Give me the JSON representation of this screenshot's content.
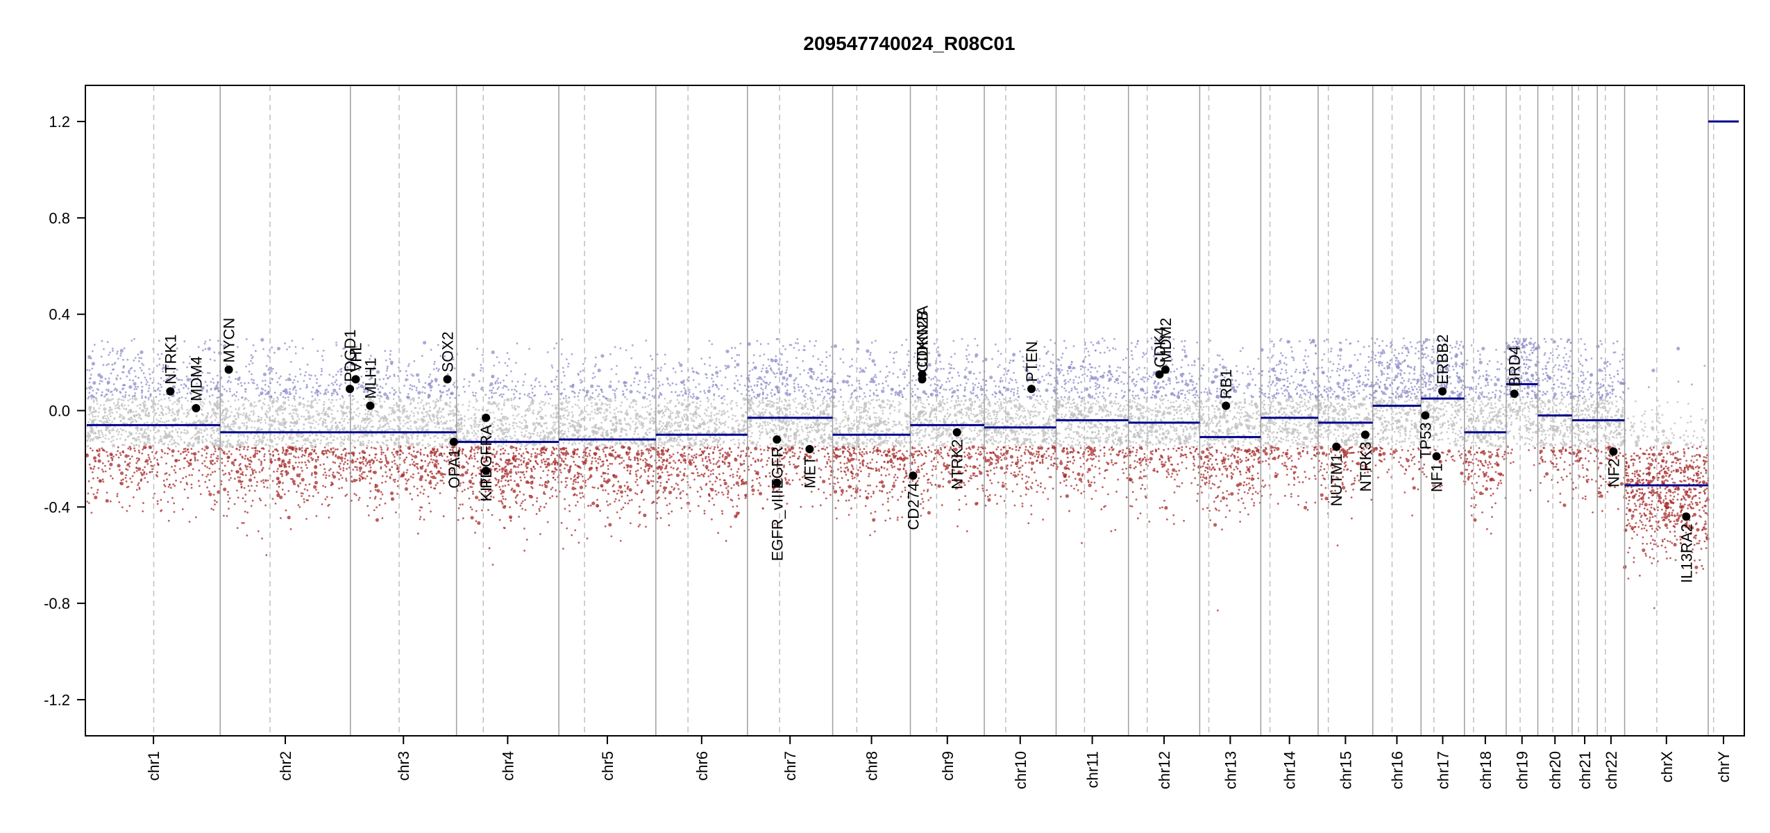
{
  "chart_data": {
    "type": "scatter",
    "title": "209547740024_R08C01",
    "xlabel": "",
    "ylabel": "",
    "ylim": [
      -1.35,
      1.35
    ],
    "yticks": [
      -1.2,
      -0.8,
      -0.4,
      0.0,
      0.4,
      0.8,
      1.2
    ],
    "ytick_labels": [
      "-1.2",
      "-0.8",
      "-0.4",
      "0.0",
      "0.4",
      "0.8",
      "1.2"
    ],
    "grid": false,
    "colors": {
      "segment": "#00008b",
      "gain_points": "#8c8cc8",
      "loss_points": "#a52a2a",
      "neutral_points": "#bdbdbd",
      "boundary": "#9e9e9e",
      "centromere": "#c0c0c0"
    },
    "chromosomes": [
      {
        "name": "chr1",
        "length": 249,
        "centromere": 125
      },
      {
        "name": "chr2",
        "length": 243,
        "centromere": 93
      },
      {
        "name": "chr3",
        "length": 198,
        "centromere": 91
      },
      {
        "name": "chr4",
        "length": 191,
        "centromere": 50
      },
      {
        "name": "chr5",
        "length": 181,
        "centromere": 48
      },
      {
        "name": "chr6",
        "length": 171,
        "centromere": 60
      },
      {
        "name": "chr7",
        "length": 159,
        "centromere": 60
      },
      {
        "name": "chr8",
        "length": 145,
        "centromere": 45
      },
      {
        "name": "chr9",
        "length": 138,
        "centromere": 49
      },
      {
        "name": "chr10",
        "length": 134,
        "centromere": 40
      },
      {
        "name": "chr11",
        "length": 135,
        "centromere": 53
      },
      {
        "name": "chr12",
        "length": 133,
        "centromere": 35
      },
      {
        "name": "chr13",
        "length": 114,
        "centromere": 17
      },
      {
        "name": "chr14",
        "length": 107,
        "centromere": 17
      },
      {
        "name": "chr15",
        "length": 102,
        "centromere": 19
      },
      {
        "name": "chr16",
        "length": 90,
        "centromere": 36
      },
      {
        "name": "chr17",
        "length": 81,
        "centromere": 24
      },
      {
        "name": "chr18",
        "length": 78,
        "centromere": 17
      },
      {
        "name": "chr19",
        "length": 59,
        "centromere": 26
      },
      {
        "name": "chr20",
        "length": 64,
        "centromere": 28
      },
      {
        "name": "chr21",
        "length": 47,
        "centromere": 12
      },
      {
        "name": "chr22",
        "length": 51,
        "centromere": 15
      },
      {
        "name": "chrX",
        "length": 156,
        "centromere": 60
      },
      {
        "name": "chrY",
        "length": 57,
        "centromere": 10
      }
    ],
    "segments": [
      {
        "chrom": "chr1",
        "start": 0,
        "end": 249,
        "value": -0.06
      },
      {
        "chrom": "chr2",
        "start": 0,
        "end": 243,
        "value": -0.09
      },
      {
        "chrom": "chr3",
        "start": 0,
        "end": 198,
        "value": -0.09
      },
      {
        "chrom": "chr4",
        "start": 0,
        "end": 191,
        "value": -0.13
      },
      {
        "chrom": "chr5",
        "start": 0,
        "end": 181,
        "value": -0.12
      },
      {
        "chrom": "chr6",
        "start": 0,
        "end": 171,
        "value": -0.1
      },
      {
        "chrom": "chr7",
        "start": 0,
        "end": 159,
        "value": -0.03
      },
      {
        "chrom": "chr8",
        "start": 0,
        "end": 145,
        "value": -0.1
      },
      {
        "chrom": "chr9",
        "start": 0,
        "end": 138,
        "value": -0.06
      },
      {
        "chrom": "chr10",
        "start": 0,
        "end": 134,
        "value": -0.07
      },
      {
        "chrom": "chr11",
        "start": 0,
        "end": 135,
        "value": -0.04
      },
      {
        "chrom": "chr12",
        "start": 0,
        "end": 133,
        "value": -0.05
      },
      {
        "chrom": "chr13",
        "start": 0,
        "end": 114,
        "value": -0.11
      },
      {
        "chrom": "chr14",
        "start": 0,
        "end": 107,
        "value": -0.03
      },
      {
        "chrom": "chr15",
        "start": 0,
        "end": 102,
        "value": -0.05
      },
      {
        "chrom": "chr16",
        "start": 0,
        "end": 90,
        "value": 0.02
      },
      {
        "chrom": "chr17",
        "start": 0,
        "end": 81,
        "value": 0.05
      },
      {
        "chrom": "chr18",
        "start": 0,
        "end": 78,
        "value": -0.09
      },
      {
        "chrom": "chr19",
        "start": 0,
        "end": 59,
        "value": 0.11
      },
      {
        "chrom": "chr20",
        "start": 0,
        "end": 64,
        "value": -0.02
      },
      {
        "chrom": "chr21",
        "start": 0,
        "end": 47,
        "value": -0.04
      },
      {
        "chrom": "chr22",
        "start": 0,
        "end": 51,
        "value": -0.04
      },
      {
        "chrom": "chrX",
        "start": 0,
        "end": 156,
        "value": -0.31
      },
      {
        "chrom": "chrY",
        "start": 0,
        "end": 57,
        "value": 1.2
      }
    ],
    "genes": [
      {
        "label": "NTRK1",
        "chrom": "chr1",
        "pos": 156,
        "value": 0.08
      },
      {
        "label": "MDM4",
        "chrom": "chr1",
        "pos": 204,
        "value": 0.01
      },
      {
        "label": "MYCN",
        "chrom": "chr2",
        "pos": 16,
        "value": 0.17
      },
      {
        "label": "PDGD1",
        "chrom": "chr2",
        "pos": 242,
        "value": 0.09
      },
      {
        "label": "VHL",
        "chrom": "chr3",
        "pos": 10,
        "value": 0.13
      },
      {
        "label": "MLH1",
        "chrom": "chr3",
        "pos": 37,
        "value": 0.02
      },
      {
        "label": "SOX2",
        "chrom": "chr3",
        "pos": 181,
        "value": 0.13
      },
      {
        "label": "OPA1",
        "chrom": "chr3",
        "pos": 193,
        "value": -0.13
      },
      {
        "label": "KIT",
        "chrom": "chr4",
        "pos": 55,
        "value": -0.25
      },
      {
        "label": "PDGFRA",
        "chrom": "chr4",
        "pos": 55,
        "value": -0.03
      },
      {
        "label": "EGFR_vIII",
        "chrom": "chr7",
        "pos": 55,
        "value": -0.3
      },
      {
        "label": "EGFR",
        "chrom": "chr7",
        "pos": 55,
        "value": -0.12
      },
      {
        "label": "MET",
        "chrom": "chr7",
        "pos": 116,
        "value": -0.16
      },
      {
        "label": "CD274",
        "chrom": "chr9",
        "pos": 5,
        "value": -0.27
      },
      {
        "label": "CDKN2A",
        "chrom": "chr9",
        "pos": 22,
        "value": 0.15
      },
      {
        "label": "CDKN2B",
        "chrom": "chr9",
        "pos": 22,
        "value": 0.13
      },
      {
        "label": "NTRK2",
        "chrom": "chr9",
        "pos": 87,
        "value": -0.09
      },
      {
        "label": "PTEN",
        "chrom": "chr10",
        "pos": 88,
        "value": 0.09
      },
      {
        "label": "CDK4",
        "chrom": "chr12",
        "pos": 58,
        "value": 0.15
      },
      {
        "label": "MDM2",
        "chrom": "chr12",
        "pos": 69,
        "value": 0.17
      },
      {
        "label": "RB1",
        "chrom": "chr13",
        "pos": 49,
        "value": 0.02
      },
      {
        "label": "NUTM1",
        "chrom": "chr15",
        "pos": 34,
        "value": -0.15
      },
      {
        "label": "NTRK3",
        "chrom": "chr15",
        "pos": 88,
        "value": -0.1
      },
      {
        "label": "TP53",
        "chrom": "chr17",
        "pos": 8,
        "value": -0.02
      },
      {
        "label": "NF1",
        "chrom": "chr17",
        "pos": 29,
        "value": -0.19
      },
      {
        "label": "ERBB2",
        "chrom": "chr17",
        "pos": 40,
        "value": 0.08
      },
      {
        "label": "BRD4",
        "chrom": "chr19",
        "pos": 15,
        "value": 0.07
      },
      {
        "label": "NF2",
        "chrom": "chr22",
        "pos": 30,
        "value": -0.17
      },
      {
        "label": "IL13RA2",
        "chrom": "chrX",
        "pos": 115,
        "value": -0.44
      }
    ]
  }
}
